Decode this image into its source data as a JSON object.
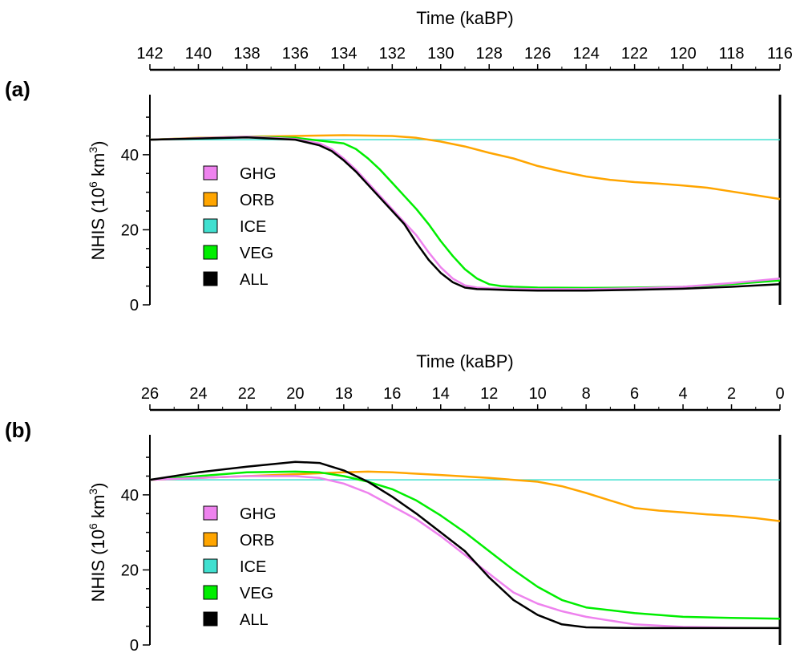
{
  "colors": {
    "GHG": "#ee82ee",
    "ORB": "#ffa500",
    "ICE": "#40e0d0",
    "VEG": "#00ee00",
    "ALL": "#000000"
  },
  "chart_data": [
    {
      "panel": "(a)",
      "type": "line",
      "xlabel": "Time (kaBP)",
      "ylabel": "NHIS (10",
      "ylabel_sup1": "6",
      "ylabel_mid": " km",
      "ylabel_sup2": "3",
      "ylabel_end": ")",
      "xlim": [
        142,
        116
      ],
      "ylim": [
        0,
        56
      ],
      "xticks": [
        142,
        140,
        138,
        136,
        134,
        132,
        130,
        128,
        126,
        124,
        122,
        120,
        118,
        116
      ],
      "xtick_labels": [
        "142",
        "140",
        "138",
        "136",
        "134",
        "132",
        "130",
        "128",
        "126",
        "124",
        "122",
        "120",
        "118",
        "116"
      ],
      "yticks": [
        0,
        20,
        40
      ],
      "ytick_labels": [
        "0",
        "20",
        "40"
      ],
      "legend": [
        "GHG",
        "ORB",
        "ICE",
        "VEG",
        "ALL"
      ],
      "series": [
        {
          "name": "ICE",
          "x": [
            142,
            116
          ],
          "y": [
            44,
            44
          ]
        },
        {
          "name": "ORB",
          "x": [
            142,
            140,
            138,
            136,
            134,
            132,
            131,
            130,
            129,
            128,
            127,
            126,
            125,
            124,
            123,
            122,
            121,
            120,
            119,
            118,
            117,
            116
          ],
          "y": [
            44,
            44.5,
            44.8,
            45,
            45.2,
            45,
            44.5,
            43.5,
            42.2,
            40.5,
            39,
            37,
            35.5,
            34.2,
            33.3,
            32.7,
            32.3,
            31.8,
            31.2,
            30.2,
            29.2,
            28.2
          ]
        },
        {
          "name": "VEG",
          "x": [
            142,
            138,
            136,
            134,
            133.5,
            133,
            132.5,
            132,
            131.5,
            131,
            130.5,
            130,
            129.5,
            129,
            128.5,
            128,
            127.5,
            127,
            126,
            124,
            122,
            120,
            118,
            116
          ],
          "y": [
            44,
            44.8,
            44.5,
            43,
            41.5,
            39,
            36,
            32.5,
            29,
            25.5,
            21.5,
            17,
            13,
            9.5,
            7,
            5.5,
            5,
            4.8,
            4.6,
            4.5,
            4.6,
            4.8,
            5.5,
            6.5
          ]
        },
        {
          "name": "GHG",
          "x": [
            142,
            138,
            136,
            135,
            134.5,
            134,
            133.5,
            133,
            132.5,
            132,
            131.5,
            131,
            130.5,
            130,
            129.5,
            129,
            128.5,
            128,
            127,
            126,
            124,
            122,
            120,
            118,
            116
          ],
          "y": [
            44,
            44.8,
            44.2,
            43,
            41.5,
            39,
            36,
            32.5,
            29,
            25.5,
            22,
            18.5,
            14,
            10,
            7,
            5.2,
            4.6,
            4.4,
            4.3,
            4.2,
            4.2,
            4.4,
            4.8,
            5.8,
            7
          ]
        },
        {
          "name": "ALL",
          "x": [
            142,
            138,
            136,
            135,
            134.5,
            134,
            133.5,
            133,
            132.5,
            132,
            131.5,
            131,
            130.5,
            130,
            129.5,
            129,
            128.5,
            128,
            127,
            126,
            124,
            122,
            120,
            118,
            116
          ],
          "y": [
            44,
            44.6,
            44,
            42.5,
            41,
            38.5,
            35.5,
            32,
            28.5,
            25,
            21.5,
            16.5,
            12,
            8.5,
            6,
            4.6,
            4.2,
            4.1,
            3.9,
            3.8,
            3.8,
            4,
            4.3,
            4.8,
            5.5
          ]
        }
      ]
    },
    {
      "panel": "(b)",
      "type": "line",
      "xlabel": "Time (kaBP)",
      "ylabel": "NHIS (10",
      "ylabel_sup1": "6",
      "ylabel_mid": " km",
      "ylabel_sup2": "3",
      "ylabel_end": ")",
      "xlim": [
        26,
        0
      ],
      "ylim": [
        0,
        56
      ],
      "xticks": [
        26,
        24,
        22,
        20,
        18,
        16,
        14,
        12,
        10,
        8,
        6,
        4,
        2,
        0
      ],
      "xtick_labels": [
        "26",
        "24",
        "22",
        "20",
        "18",
        "16",
        "14",
        "12",
        "10",
        "8",
        "6",
        "4",
        "2",
        "0"
      ],
      "yticks": [
        0,
        20,
        40
      ],
      "ytick_labels": [
        "0",
        "20",
        "40"
      ],
      "legend": [
        "GHG",
        "ORB",
        "ICE",
        "VEG",
        "ALL"
      ],
      "series": [
        {
          "name": "ICE",
          "x": [
            26,
            0
          ],
          "y": [
            44,
            44
          ]
        },
        {
          "name": "ORB",
          "x": [
            26,
            24,
            22,
            20,
            18,
            17,
            16,
            14,
            12,
            10,
            9,
            8,
            7,
            6,
            5,
            4,
            3,
            2,
            1,
            0
          ],
          "y": [
            44,
            44.5,
            45,
            45.5,
            46,
            46.2,
            46,
            45.3,
            44.5,
            43.5,
            42.3,
            40.5,
            38.5,
            36.5,
            35.8,
            35.3,
            34.8,
            34.4,
            33.8,
            33
          ]
        },
        {
          "name": "VEG",
          "x": [
            26,
            24,
            22,
            20,
            19,
            18,
            17,
            16,
            15,
            14,
            13,
            12,
            11,
            10,
            9,
            8,
            6,
            4,
            2,
            0
          ],
          "y": [
            44,
            45,
            46,
            46.2,
            46,
            45,
            43.5,
            41.5,
            38.5,
            34.5,
            30,
            25,
            20,
            15.5,
            12,
            10,
            8.5,
            7.5,
            7.2,
            7
          ]
        },
        {
          "name": "GHG",
          "x": [
            26,
            24,
            22,
            20,
            19,
            18,
            17,
            16,
            15,
            14,
            13,
            12,
            11,
            10,
            9,
            8,
            6,
            4,
            2,
            0
          ],
          "y": [
            44,
            44.5,
            45,
            45,
            44.5,
            43,
            40.5,
            37,
            33.5,
            29,
            24,
            19,
            14,
            11,
            9,
            7.5,
            5.5,
            4.8,
            4.6,
            4.5
          ]
        },
        {
          "name": "ALL",
          "x": [
            26,
            24,
            22,
            20,
            19,
            18,
            17,
            16,
            15,
            14,
            13,
            12,
            11,
            10,
            9,
            8,
            6,
            4,
            2,
            0
          ],
          "y": [
            44,
            46,
            47.5,
            48.8,
            48.5,
            46.5,
            43.5,
            39.5,
            35,
            30,
            25,
            18,
            12,
            8,
            5.5,
            4.7,
            4.5,
            4.5,
            4.5,
            4.5
          ]
        }
      ]
    }
  ]
}
